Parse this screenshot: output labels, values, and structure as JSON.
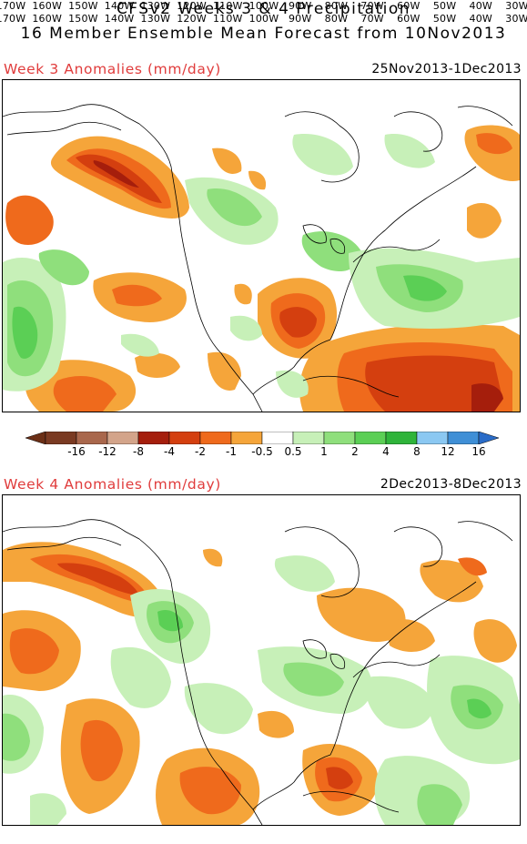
{
  "title_line1": "CFSv2 Weeks 3 & 4 Precipitation",
  "title_line2": "16 Member Ensemble Mean Forecast from 10Nov2013",
  "panels": [
    {
      "label": "Week 3 Anomalies (mm/day)",
      "dates": "25Nov2013-1Dec2013"
    },
    {
      "label": "Week 4 Anomalies (mm/day)",
      "dates": "2Dec2013-8Dec2013"
    }
  ],
  "longitudes": [
    "170W",
    "160W",
    "150W",
    "140W",
    "130W",
    "120W",
    "110W",
    "100W",
    "90W",
    "80W",
    "70W",
    "60W",
    "50W",
    "40W",
    "30W"
  ],
  "colorbar": {
    "labels": [
      "-16",
      "-12",
      "-8",
      "-4",
      "-2",
      "-1",
      "-0.5",
      "0.5",
      "1",
      "2",
      "4",
      "8",
      "12",
      "16"
    ],
    "colors": [
      "#7a3a22",
      "#a9674c",
      "#d3a48a",
      "#a51e0c",
      "#d43f0f",
      "#ef6a1c",
      "#f5a53a",
      "#ffffff",
      "#c7f0b8",
      "#8fdf7c",
      "#5bcf55",
      "#2fb43a",
      "#8bc8f2",
      "#3f8fd6"
    ],
    "end_low": "#6b2f16",
    "end_high": "#2a6cc8"
  },
  "anomaly_colors": {
    "dry_light": "#f5a53a",
    "dry_mid": "#ef6a1c",
    "dry_strong": "#d43f0f",
    "dry_extreme": "#a51e0c",
    "wet_light": "#c7f0b8",
    "wet_mid": "#8fdf7c",
    "wet_strong": "#5bcf55",
    "wet_extreme": "#2fb43a"
  }
}
